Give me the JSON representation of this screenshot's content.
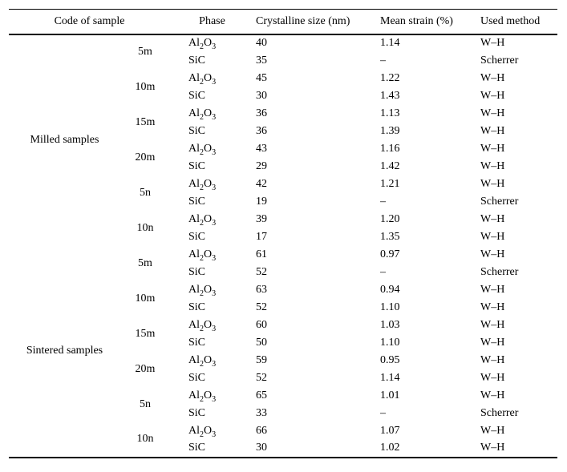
{
  "table": {
    "headers": {
      "code": "Code of sample",
      "phase": "Phase",
      "size": "Crystalline size (nm)",
      "strain": "Mean strain (%)",
      "method": "Used method"
    },
    "groups": [
      {
        "label": "Milled samples",
        "codes": [
          {
            "code": "5m",
            "rows": [
              {
                "phase": "Al2O3",
                "size": "40",
                "strain": "1.14",
                "method": "W–H"
              },
              {
                "phase": "SiC",
                "size": "35",
                "strain": "–",
                "method": "Scherrer"
              }
            ]
          },
          {
            "code": "10m",
            "rows": [
              {
                "phase": "Al2O3",
                "size": "45",
                "strain": "1.22",
                "method": "W–H"
              },
              {
                "phase": "SiC",
                "size": "30",
                "strain": "1.43",
                "method": "W–H"
              }
            ]
          },
          {
            "code": "15m",
            "rows": [
              {
                "phase": "Al2O3",
                "size": "36",
                "strain": "1.13",
                "method": "W–H"
              },
              {
                "phase": "SiC",
                "size": "36",
                "strain": "1.39",
                "method": "W–H"
              }
            ]
          },
          {
            "code": "20m",
            "rows": [
              {
                "phase": "Al2O3",
                "size": "43",
                "strain": "1.16",
                "method": "W–H"
              },
              {
                "phase": "SiC",
                "size": "29",
                "strain": "1.42",
                "method": "W–H"
              }
            ]
          },
          {
            "code": "5n",
            "rows": [
              {
                "phase": "Al2O3",
                "size": "42",
                "strain": "1.21",
                "method": "W–H"
              },
              {
                "phase": "SiC",
                "size": "19",
                "strain": "–",
                "method": "Scherrer"
              }
            ]
          },
          {
            "code": "10n",
            "rows": [
              {
                "phase": "Al2O3",
                "size": "39",
                "strain": "1.20",
                "method": "W–H"
              },
              {
                "phase": "SiC",
                "size": "17",
                "strain": "1.35",
                "method": "W–H"
              }
            ]
          }
        ]
      },
      {
        "label": "Sintered samples",
        "codes": [
          {
            "code": "5m",
            "rows": [
              {
                "phase": "Al2O3",
                "size": "61",
                "strain": "0.97",
                "method": "W–H"
              },
              {
                "phase": "SiC",
                "size": "52",
                "strain": "–",
                "method": "Scherrer"
              }
            ]
          },
          {
            "code": "10m",
            "rows": [
              {
                "phase": "Al2O3",
                "size": "63",
                "strain": "0.94",
                "method": "W–H"
              },
              {
                "phase": "SiC",
                "size": "52",
                "strain": "1.10",
                "method": "W–H"
              }
            ]
          },
          {
            "code": "15m",
            "rows": [
              {
                "phase": "Al2O3",
                "size": "60",
                "strain": "1.03",
                "method": "W–H"
              },
              {
                "phase": "SiC",
                "size": "50",
                "strain": "1.10",
                "method": "W–H"
              }
            ]
          },
          {
            "code": "20m",
            "rows": [
              {
                "phase": "Al2O3",
                "size": "59",
                "strain": "0.95",
                "method": "W–H"
              },
              {
                "phase": "SiC",
                "size": "52",
                "strain": "1.14",
                "method": "W–H"
              }
            ]
          },
          {
            "code": "5n",
            "rows": [
              {
                "phase": "Al2O3",
                "size": "65",
                "strain": "1.01",
                "method": "W–H"
              },
              {
                "phase": "SiC",
                "size": "33",
                "strain": "–",
                "method": "Scherrer"
              }
            ]
          },
          {
            "code": "10n",
            "rows": [
              {
                "phase": "Al2O3",
                "size": "66",
                "strain": "1.07",
                "method": "W–H"
              },
              {
                "phase": "SiC",
                "size": "30",
                "strain": "1.02",
                "method": "W–H"
              }
            ]
          }
        ]
      }
    ]
  }
}
